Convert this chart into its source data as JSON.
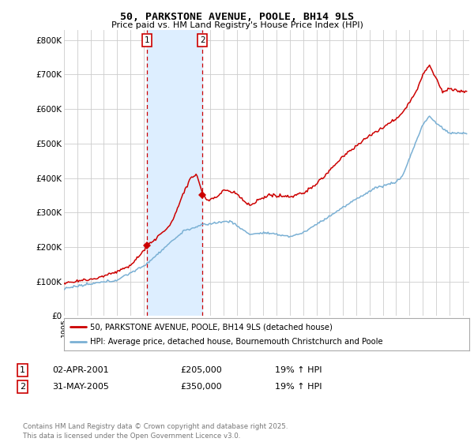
{
  "title": "50, PARKSTONE AVENUE, POOLE, BH14 9LS",
  "subtitle": "Price paid vs. HM Land Registry's House Price Index (HPI)",
  "ylabel_ticks": [
    "£0",
    "£100K",
    "£200K",
    "£300K",
    "£400K",
    "£500K",
    "£600K",
    "£700K",
    "£800K"
  ],
  "ytick_values": [
    0,
    100000,
    200000,
    300000,
    400000,
    500000,
    600000,
    700000,
    800000
  ],
  "ylim": [
    0,
    830000
  ],
  "xlim_start": 1995.0,
  "xlim_end": 2025.5,
  "purchase1_x": 2001.25,
  "purchase1_y": 205000,
  "purchase1_label": "1",
  "purchase1_date": "02-APR-2001",
  "purchase1_price": "£205,000",
  "purchase1_hpi": "19% ↑ HPI",
  "purchase2_x": 2005.42,
  "purchase2_y": 350000,
  "purchase2_label": "2",
  "purchase2_date": "31-MAY-2005",
  "purchase2_price": "£350,000",
  "purchase2_hpi": "19% ↑ HPI",
  "line1_color": "#cc0000",
  "line2_color": "#7ab0d4",
  "shade_color": "#ddeeff",
  "grid_color": "#cccccc",
  "bg_color": "#ffffff",
  "legend_line1": "50, PARKSTONE AVENUE, POOLE, BH14 9LS (detached house)",
  "legend_line2": "HPI: Average price, detached house, Bournemouth Christchurch and Poole",
  "footer": "Contains HM Land Registry data © Crown copyright and database right 2025.\nThis data is licensed under the Open Government Licence v3.0.",
  "purchase_marker_color": "#cc0000",
  "vline_color": "#cc0000",
  "box_color": "#cc0000"
}
